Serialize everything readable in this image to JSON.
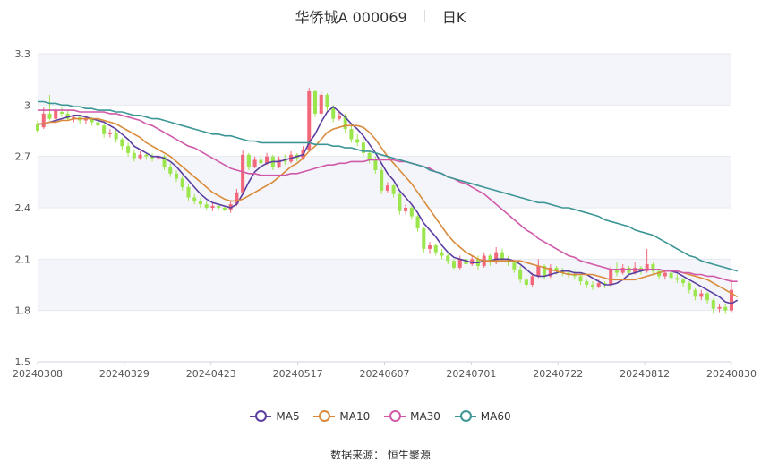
{
  "header": {
    "title": "华侨城A 000069",
    "period_tab": "日K"
  },
  "legend": [
    {
      "name": "MA5",
      "color": "#5b3fa0"
    },
    {
      "name": "MA10",
      "color": "#d98a3a"
    },
    {
      "name": "MA30",
      "color": "#d05aa8"
    },
    {
      "name": "MA60",
      "color": "#3d9696"
    }
  ],
  "footer": {
    "source_label": "数据来源：",
    "source_name": "恒生聚源"
  },
  "colors": {
    "up": "#f2687a",
    "down": "#9be64c",
    "grid": "#e6e9f0",
    "band": "#f4f5fa"
  },
  "chart_data": {
    "type": "candlestick",
    "title": "华侨城A 000069",
    "ylim": [
      1.5,
      3.3
    ],
    "yticks": [
      "1.5",
      "1.8",
      "2.1",
      "2.4",
      "2.7",
      "3",
      "3.3"
    ],
    "xticks": [
      "20240308",
      "20240329",
      "20240423",
      "20240517",
      "20240607",
      "20240701",
      "20240722",
      "20240812",
      "20240830"
    ],
    "candles": [
      [
        2.89,
        2.85,
        2.91,
        2.84
      ],
      [
        2.87,
        2.95,
        2.99,
        2.86
      ],
      [
        2.95,
        2.92,
        3.06,
        2.91
      ],
      [
        2.92,
        2.97,
        2.98,
        2.9
      ],
      [
        2.96,
        2.95,
        2.99,
        2.93
      ],
      [
        2.95,
        2.92,
        2.97,
        2.91
      ],
      [
        2.92,
        2.93,
        2.94,
        2.9
      ],
      [
        2.93,
        2.91,
        2.94,
        2.89
      ],
      [
        2.91,
        2.92,
        2.93,
        2.89
      ],
      [
        2.92,
        2.9,
        2.93,
        2.88
      ],
      [
        2.9,
        2.88,
        2.92,
        2.86
      ],
      [
        2.88,
        2.83,
        2.89,
        2.81
      ],
      [
        2.83,
        2.84,
        2.86,
        2.81
      ],
      [
        2.84,
        2.8,
        2.86,
        2.78
      ],
      [
        2.8,
        2.76,
        2.81,
        2.74
      ],
      [
        2.76,
        2.72,
        2.78,
        2.7
      ],
      [
        2.72,
        2.69,
        2.74,
        2.67
      ],
      [
        2.69,
        2.71,
        2.73,
        2.68
      ],
      [
        2.71,
        2.7,
        2.72,
        2.68
      ],
      [
        2.7,
        2.69,
        2.72,
        2.67
      ],
      [
        2.69,
        2.7,
        2.71,
        2.68
      ],
      [
        2.7,
        2.64,
        2.71,
        2.62
      ],
      [
        2.64,
        2.6,
        2.66,
        2.58
      ],
      [
        2.6,
        2.57,
        2.62,
        2.55
      ],
      [
        2.57,
        2.52,
        2.59,
        2.5
      ],
      [
        2.52,
        2.46,
        2.54,
        2.44
      ],
      [
        2.46,
        2.44,
        2.48,
        2.42
      ],
      [
        2.44,
        2.42,
        2.46,
        2.4
      ],
      [
        2.42,
        2.4,
        2.44,
        2.39
      ],
      [
        2.4,
        2.41,
        2.43,
        2.38
      ],
      [
        2.41,
        2.4,
        2.42,
        2.39
      ],
      [
        2.4,
        2.39,
        2.41,
        2.38
      ],
      [
        2.39,
        2.42,
        2.44,
        2.37
      ],
      [
        2.42,
        2.49,
        2.51,
        2.41
      ],
      [
        2.49,
        2.71,
        2.74,
        2.48
      ],
      [
        2.71,
        2.64,
        2.72,
        2.62
      ],
      [
        2.64,
        2.68,
        2.7,
        2.63
      ],
      [
        2.68,
        2.66,
        2.71,
        2.64
      ],
      [
        2.66,
        2.7,
        2.72,
        2.65
      ],
      [
        2.7,
        2.64,
        2.71,
        2.62
      ],
      [
        2.64,
        2.68,
        2.7,
        2.63
      ],
      [
        2.68,
        2.67,
        2.71,
        2.65
      ],
      [
        2.67,
        2.71,
        2.73,
        2.66
      ],
      [
        2.71,
        2.69,
        2.72,
        2.67
      ],
      [
        2.69,
        2.74,
        2.76,
        2.68
      ],
      [
        2.74,
        3.08,
        3.1,
        2.73
      ],
      [
        3.08,
        2.95,
        3.09,
        2.93
      ],
      [
        2.95,
        3.06,
        3.08,
        2.94
      ],
      [
        3.06,
        2.99,
        3.07,
        2.96
      ],
      [
        2.99,
        2.92,
        3.0,
        2.9
      ],
      [
        2.92,
        2.94,
        2.97,
        2.91
      ],
      [
        2.94,
        2.86,
        2.95,
        2.84
      ],
      [
        2.86,
        2.8,
        2.88,
        2.78
      ],
      [
        2.8,
        2.78,
        2.83,
        2.76
      ],
      [
        2.78,
        2.72,
        2.8,
        2.7
      ],
      [
        2.72,
        2.68,
        2.74,
        2.66
      ],
      [
        2.68,
        2.62,
        2.7,
        2.6
      ],
      [
        2.62,
        2.5,
        2.64,
        2.48
      ],
      [
        2.5,
        2.53,
        2.55,
        2.49
      ],
      [
        2.53,
        2.48,
        2.54,
        2.46
      ],
      [
        2.48,
        2.38,
        2.49,
        2.36
      ],
      [
        2.38,
        2.4,
        2.42,
        2.36
      ],
      [
        2.4,
        2.35,
        2.41,
        2.33
      ],
      [
        2.35,
        2.28,
        2.36,
        2.26
      ],
      [
        2.28,
        2.16,
        2.29,
        2.14
      ],
      [
        2.16,
        2.18,
        2.2,
        2.13
      ],
      [
        2.18,
        2.14,
        2.19,
        2.12
      ],
      [
        2.14,
        2.12,
        2.16,
        2.1
      ],
      [
        2.12,
        2.09,
        2.14,
        2.07
      ],
      [
        2.09,
        2.05,
        2.1,
        2.04
      ],
      [
        2.05,
        2.1,
        2.12,
        2.04
      ],
      [
        2.1,
        2.07,
        2.13,
        2.05
      ],
      [
        2.07,
        2.1,
        2.12,
        2.06
      ],
      [
        2.1,
        2.06,
        2.12,
        2.04
      ],
      [
        2.06,
        2.12,
        2.14,
        2.05
      ],
      [
        2.12,
        2.08,
        2.13,
        2.06
      ],
      [
        2.08,
        2.14,
        2.17,
        2.07
      ],
      [
        2.14,
        2.1,
        2.16,
        2.08
      ],
      [
        2.1,
        2.08,
        2.12,
        2.06
      ],
      [
        2.08,
        2.04,
        2.09,
        2.02
      ],
      [
        2.04,
        1.98,
        2.06,
        1.96
      ],
      [
        1.98,
        1.95,
        1.99,
        1.93
      ],
      [
        1.95,
        2.0,
        2.02,
        1.94
      ],
      [
        2.0,
        2.06,
        2.1,
        1.99
      ],
      [
        2.06,
        2.0,
        2.07,
        1.98
      ],
      [
        2.0,
        2.05,
        2.07,
        1.99
      ],
      [
        2.05,
        2.03,
        2.06,
        2.01
      ],
      [
        2.03,
        2.02,
        2.05,
        2.0
      ],
      [
        2.02,
        2.01,
        2.04,
        1.99
      ],
      [
        2.01,
        2.0,
        2.03,
        1.98
      ],
      [
        2.0,
        1.97,
        2.01,
        1.95
      ],
      [
        1.97,
        1.95,
        1.98,
        1.93
      ],
      [
        1.95,
        1.94,
        1.97,
        1.92
      ],
      [
        1.94,
        1.96,
        1.98,
        1.93
      ],
      [
        1.96,
        1.95,
        1.97,
        1.93
      ],
      [
        1.95,
        2.04,
        2.06,
        1.94
      ],
      [
        2.04,
        2.02,
        2.08,
        2.0
      ],
      [
        2.02,
        2.05,
        2.07,
        2.01
      ],
      [
        2.05,
        2.02,
        2.06,
        2.0
      ],
      [
        2.02,
        2.05,
        2.08,
        2.01
      ],
      [
        2.05,
        2.03,
        2.06,
        2.01
      ],
      [
        2.03,
        2.07,
        2.16,
        2.02
      ],
      [
        2.07,
        2.03,
        2.08,
        2.01
      ],
      [
        2.03,
        2.0,
        2.04,
        1.98
      ],
      [
        2.0,
        2.02,
        2.03,
        1.98
      ],
      [
        2.02,
        1.99,
        2.03,
        1.97
      ],
      [
        1.99,
        1.98,
        2.01,
        1.96
      ],
      [
        1.98,
        1.96,
        1.99,
        1.94
      ],
      [
        1.96,
        1.92,
        1.97,
        1.9
      ],
      [
        1.92,
        1.88,
        1.93,
        1.86
      ],
      [
        1.88,
        1.9,
        1.92,
        1.86
      ],
      [
        1.9,
        1.86,
        1.91,
        1.84
      ],
      [
        1.86,
        1.81,
        1.87,
        1.78
      ],
      [
        1.81,
        1.82,
        1.84,
        1.79
      ],
      [
        1.82,
        1.8,
        1.84,
        1.78
      ],
      [
        1.8,
        1.92,
        1.98,
        1.79
      ]
    ],
    "ma_series": [
      {
        "name": "MA5",
        "values": [
          2.89,
          2.89,
          2.9,
          2.91,
          2.92,
          2.93,
          2.94,
          2.94,
          2.93,
          2.92,
          2.91,
          2.9,
          2.88,
          2.86,
          2.83,
          2.8,
          2.76,
          2.74,
          2.72,
          2.7,
          2.7,
          2.69,
          2.67,
          2.64,
          2.6,
          2.56,
          2.52,
          2.48,
          2.45,
          2.43,
          2.42,
          2.41,
          2.4,
          2.42,
          2.48,
          2.55,
          2.61,
          2.64,
          2.66,
          2.67,
          2.67,
          2.68,
          2.69,
          2.7,
          2.71,
          2.78,
          2.83,
          2.9,
          2.96,
          2.99,
          2.96,
          2.93,
          2.89,
          2.86,
          2.82,
          2.77,
          2.72,
          2.66,
          2.6,
          2.56,
          2.5,
          2.46,
          2.42,
          2.37,
          2.31,
          2.27,
          2.23,
          2.18,
          2.14,
          2.11,
          2.1,
          2.09,
          2.08,
          2.08,
          2.09,
          2.09,
          2.1,
          2.1,
          2.1,
          2.09,
          2.07,
          2.04,
          2.01,
          2.0,
          2.0,
          2.01,
          2.02,
          2.03,
          2.03,
          2.02,
          2.02,
          2.01,
          1.99,
          1.97,
          1.95,
          1.95,
          1.96,
          1.98,
          2.01,
          2.02,
          2.03,
          2.04,
          2.04,
          2.04,
          2.03,
          2.03,
          2.02,
          2.0,
          1.98,
          1.96,
          1.94,
          1.92,
          1.9,
          1.88,
          1.85,
          1.84,
          1.86
        ]
      },
      {
        "name": "MA10",
        "values": [
          2.89,
          2.89,
          2.9,
          2.9,
          2.91,
          2.91,
          2.92,
          2.92,
          2.92,
          2.92,
          2.92,
          2.91,
          2.9,
          2.89,
          2.87,
          2.85,
          2.83,
          2.81,
          2.78,
          2.76,
          2.74,
          2.72,
          2.7,
          2.67,
          2.64,
          2.61,
          2.58,
          2.55,
          2.52,
          2.49,
          2.47,
          2.45,
          2.44,
          2.44,
          2.45,
          2.47,
          2.49,
          2.51,
          2.53,
          2.55,
          2.58,
          2.61,
          2.64,
          2.66,
          2.69,
          2.73,
          2.76,
          2.8,
          2.84,
          2.86,
          2.87,
          2.88,
          2.88,
          2.88,
          2.87,
          2.84,
          2.8,
          2.75,
          2.7,
          2.66,
          2.62,
          2.58,
          2.54,
          2.49,
          2.44,
          2.39,
          2.34,
          2.29,
          2.24,
          2.2,
          2.17,
          2.14,
          2.12,
          2.1,
          2.09,
          2.09,
          2.09,
          2.09,
          2.09,
          2.09,
          2.09,
          2.08,
          2.07,
          2.06,
          2.05,
          2.04,
          2.03,
          2.02,
          2.01,
          2.01,
          2.01,
          2.01,
          2.01,
          2.0,
          1.99,
          1.98,
          1.98,
          1.98,
          1.98,
          1.98,
          1.99,
          2.0,
          2.01,
          2.02,
          2.03,
          2.03,
          2.03,
          2.02,
          2.01,
          2.0,
          1.99,
          1.98,
          1.96,
          1.94,
          1.92,
          1.9,
          1.88
        ]
      },
      {
        "name": "MA30",
        "values": [
          2.97,
          2.97,
          2.97,
          2.97,
          2.97,
          2.97,
          2.97,
          2.96,
          2.96,
          2.96,
          2.96,
          2.96,
          2.95,
          2.95,
          2.94,
          2.93,
          2.92,
          2.91,
          2.89,
          2.88,
          2.86,
          2.84,
          2.82,
          2.8,
          2.78,
          2.76,
          2.75,
          2.73,
          2.71,
          2.69,
          2.67,
          2.65,
          2.63,
          2.62,
          2.61,
          2.6,
          2.6,
          2.59,
          2.59,
          2.59,
          2.59,
          2.59,
          2.6,
          2.6,
          2.61,
          2.62,
          2.63,
          2.64,
          2.65,
          2.65,
          2.66,
          2.66,
          2.67,
          2.67,
          2.67,
          2.68,
          2.68,
          2.68,
          2.68,
          2.68,
          2.67,
          2.67,
          2.66,
          2.65,
          2.64,
          2.63,
          2.61,
          2.6,
          2.58,
          2.57,
          2.55,
          2.54,
          2.52,
          2.5,
          2.48,
          2.45,
          2.42,
          2.39,
          2.36,
          2.33,
          2.3,
          2.27,
          2.25,
          2.22,
          2.2,
          2.18,
          2.16,
          2.14,
          2.12,
          2.11,
          2.09,
          2.08,
          2.07,
          2.06,
          2.05,
          2.04,
          2.04,
          2.04,
          2.04,
          2.04,
          2.04,
          2.04,
          2.04,
          2.04,
          2.03,
          2.03,
          2.03,
          2.02,
          2.02,
          2.01,
          2.01,
          2.0,
          2.0,
          1.99,
          1.98,
          1.97,
          1.97
        ]
      },
      {
        "name": "MA60",
        "values": [
          3.02,
          3.02,
          3.01,
          3.01,
          3.0,
          3.0,
          2.99,
          2.99,
          2.98,
          2.98,
          2.97,
          2.97,
          2.97,
          2.96,
          2.96,
          2.95,
          2.94,
          2.94,
          2.93,
          2.92,
          2.92,
          2.91,
          2.9,
          2.89,
          2.88,
          2.87,
          2.86,
          2.85,
          2.84,
          2.83,
          2.83,
          2.82,
          2.82,
          2.81,
          2.8,
          2.79,
          2.79,
          2.78,
          2.78,
          2.78,
          2.78,
          2.78,
          2.78,
          2.78,
          2.78,
          2.78,
          2.77,
          2.77,
          2.77,
          2.76,
          2.76,
          2.75,
          2.75,
          2.74,
          2.73,
          2.73,
          2.72,
          2.71,
          2.7,
          2.69,
          2.68,
          2.67,
          2.66,
          2.65,
          2.64,
          2.62,
          2.61,
          2.6,
          2.58,
          2.57,
          2.56,
          2.55,
          2.54,
          2.53,
          2.52,
          2.51,
          2.5,
          2.49,
          2.48,
          2.47,
          2.46,
          2.45,
          2.44,
          2.43,
          2.43,
          2.42,
          2.41,
          2.4,
          2.4,
          2.39,
          2.38,
          2.37,
          2.36,
          2.35,
          2.33,
          2.32,
          2.31,
          2.3,
          2.29,
          2.27,
          2.26,
          2.25,
          2.24,
          2.22,
          2.2,
          2.18,
          2.16,
          2.14,
          2.12,
          2.11,
          2.09,
          2.08,
          2.07,
          2.06,
          2.05,
          2.04,
          2.03
        ]
      }
    ]
  }
}
